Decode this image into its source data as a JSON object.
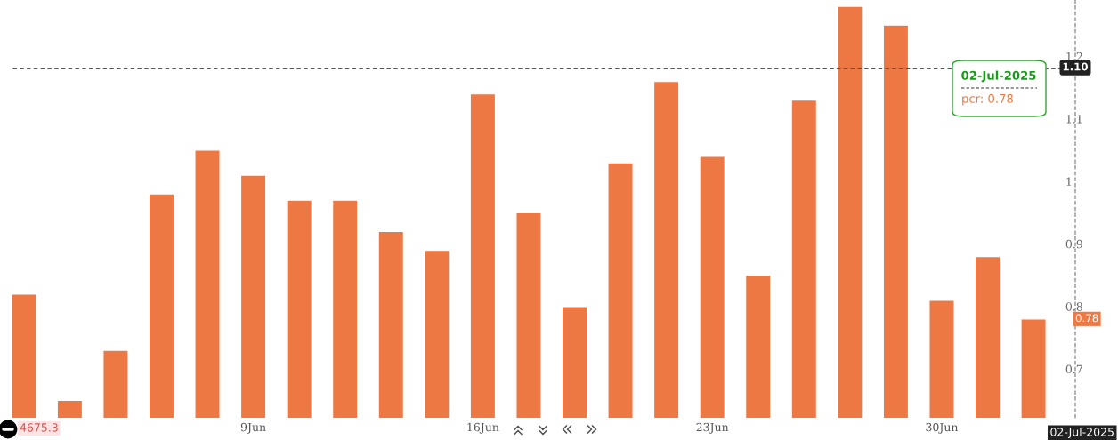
{
  "chart_data": {
    "type": "bar",
    "categories": [
      null,
      null,
      null,
      null,
      null,
      "9Jun",
      null,
      null,
      null,
      null,
      "16Jun",
      null,
      null,
      null,
      null,
      "23Jun",
      null,
      null,
      null,
      null,
      "30Jun",
      null,
      null
    ],
    "series": [
      {
        "color": "#ed7843",
        "values": [
          0.82,
          0.65,
          0.73,
          0.98,
          1.05,
          1.01,
          0.97,
          0.97,
          0.92,
          0.89,
          1.14,
          0.95,
          0.8,
          1.03,
          1.16,
          1.04,
          0.85,
          1.13,
          1.28,
          1.25,
          0.81,
          0.88,
          0.78
        ]
      }
    ],
    "ylim": [
      0.622,
      1.29
    ],
    "yticks": [
      0.7,
      0.8,
      0.9,
      1,
      1.1,
      1.2
    ],
    "ref_lines": [
      {
        "axis": "y",
        "value": 1.18,
        "color": "#555555",
        "line_style": "dashed"
      }
    ],
    "annotations": [
      "4675.3",
      "02-Jul-2025",
      "02-Jul-2025",
      "pcr: 0.78",
      "1.10",
      {
        "text": "0.78",
        "y": 0.78
      }
    ],
    "grid": false,
    "legend": false
  }
}
